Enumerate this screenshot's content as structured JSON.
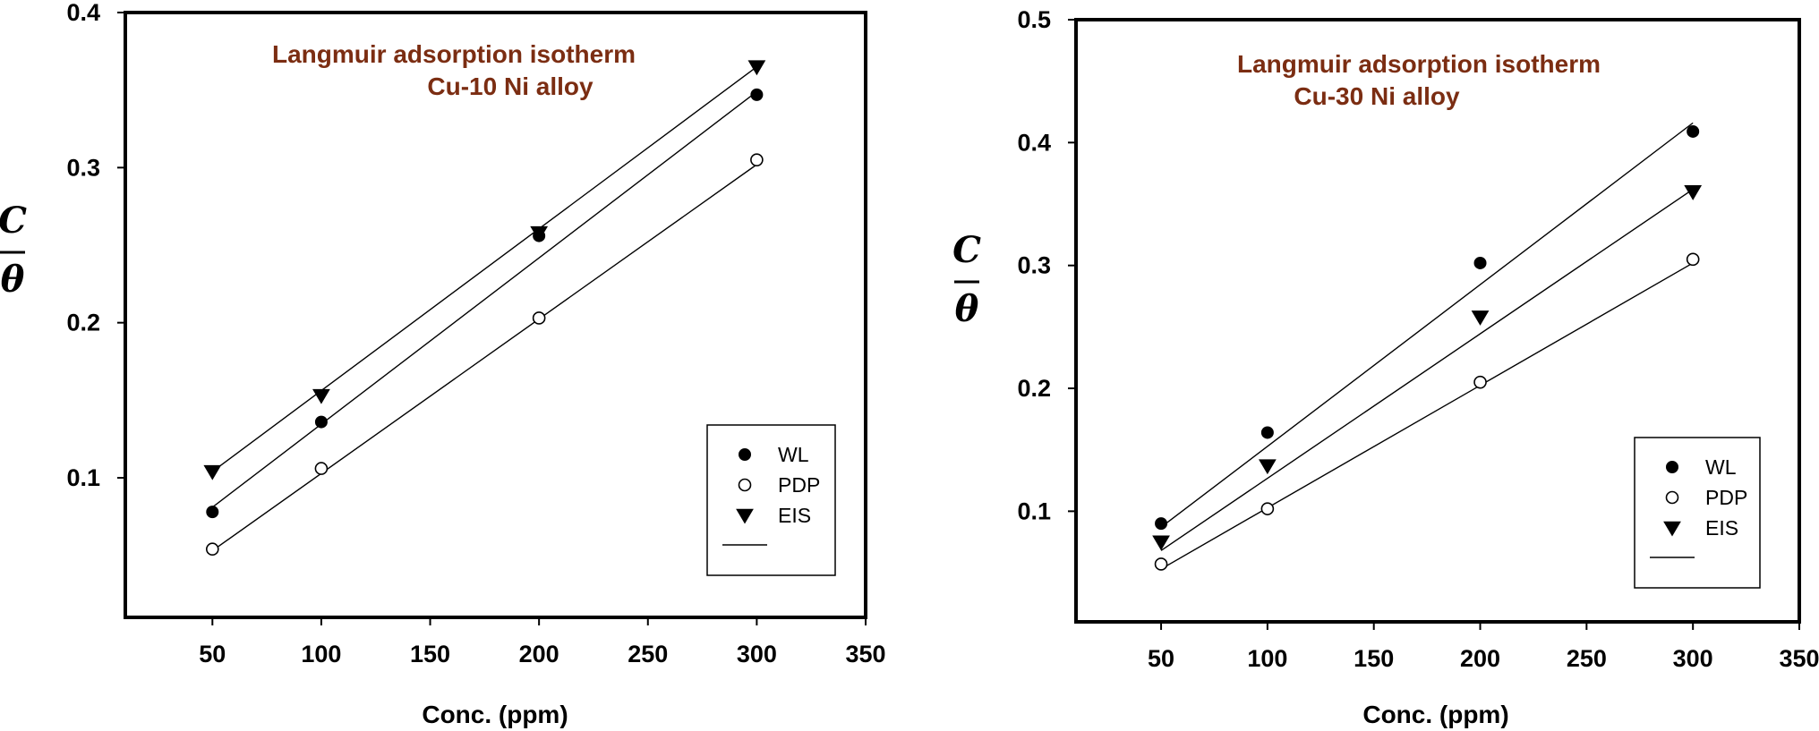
{
  "chart_data": [
    {
      "type": "scatter",
      "title": "Langmuir adsorption isotherm",
      "subtitle": "Cu-10 Ni alloy",
      "xlabel": "Conc. (ppm)",
      "ylabel_numerator": "C",
      "ylabel_denominator": "θ",
      "xlim": [
        10,
        350
      ],
      "ylim": [
        0.01,
        0.4
      ],
      "xticks": [
        50,
        100,
        150,
        200,
        250,
        300,
        350
      ],
      "yticks": [
        0.1,
        0.2,
        0.3,
        0.4
      ],
      "xtick_labels": [
        "50",
        "100",
        "150",
        "200",
        "250",
        "300",
        "350"
      ],
      "ytick_labels": [
        "0.1",
        "0.2",
        "0.3",
        "0.4"
      ],
      "grid": false,
      "legend_position": "bottom-right",
      "title_color": "#7b2d12",
      "series": [
        {
          "name": "WL",
          "marker": "filled-circle",
          "x": [
            50,
            100,
            200,
            300
          ],
          "y": [
            0.078,
            0.136,
            0.256,
            0.347
          ],
          "fit": [
            0.081,
            0.349
          ]
        },
        {
          "name": "PDP",
          "marker": "open-circle",
          "x": [
            50,
            100,
            200,
            300
          ],
          "y": [
            0.054,
            0.106,
            0.203,
            0.305
          ],
          "fit": [
            0.053,
            0.302
          ]
        },
        {
          "name": "EIS",
          "marker": "filled-triangle-down",
          "x": [
            50,
            100,
            200,
            300
          ],
          "y": [
            0.104,
            0.153,
            0.258,
            0.365
          ],
          "fit": [
            0.104,
            0.365
          ]
        }
      ]
    },
    {
      "type": "scatter",
      "title": "Langmuir adsorption isotherm",
      "subtitle": "Cu-30 Ni alloy",
      "xlabel": "Conc. (ppm)",
      "ylabel_numerator": "C",
      "ylabel_denominator": "θ",
      "xlim": [
        10,
        350
      ],
      "ylim": [
        0.01,
        0.5
      ],
      "xticks": [
        50,
        100,
        150,
        200,
        250,
        300,
        350
      ],
      "yticks": [
        0.1,
        0.2,
        0.3,
        0.4,
        0.5
      ],
      "xtick_labels": [
        "50",
        "100",
        "150",
        "200",
        "250",
        "300",
        "350"
      ],
      "ytick_labels": [
        "0.1",
        "0.2",
        "0.3",
        "0.4",
        "0.5"
      ],
      "grid": false,
      "legend_position": "bottom-right",
      "title_color": "#7b2d12",
      "series": [
        {
          "name": "WL",
          "marker": "filled-circle",
          "x": [
            50,
            100,
            200,
            300
          ],
          "y": [
            0.09,
            0.164,
            0.302,
            0.409
          ],
          "fit": [
            0.087,
            0.416
          ]
        },
        {
          "name": "PDP",
          "marker": "open-circle",
          "x": [
            50,
            100,
            200,
            300
          ],
          "y": [
            0.057,
            0.102,
            0.205,
            0.305
          ],
          "fit": [
            0.053,
            0.302
          ]
        },
        {
          "name": "EIS",
          "marker": "filled-triangle-down",
          "x": [
            50,
            100,
            200,
            300
          ],
          "y": [
            0.075,
            0.137,
            0.258,
            0.36
          ],
          "fit": [
            0.068,
            0.362
          ]
        }
      ]
    }
  ]
}
